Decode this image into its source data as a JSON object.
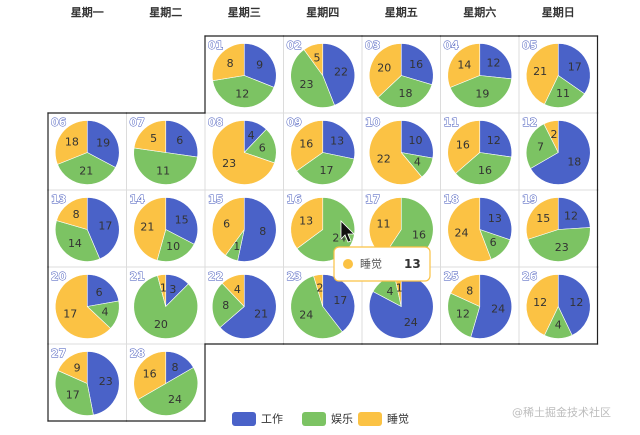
{
  "weekdays": [
    "星期一",
    "星期二",
    "星期三",
    "星期四",
    "星期五",
    "星期六",
    "星期日"
  ],
  "legend": [
    {
      "name": "工作",
      "color": "#4a62c8"
    },
    {
      "name": "娱乐",
      "color": "#7cc363"
    },
    {
      "name": "睡觉",
      "color": "#fbc244"
    }
  ],
  "tooltip": {
    "name": "睡觉",
    "value": "13"
  },
  "watermark": "@稀土掘金技术社区",
  "chart_data": {
    "type": "pie",
    "layout": "calendar",
    "series_names": [
      "工作",
      "娱乐",
      "睡觉"
    ],
    "days": [
      {
        "day": "01",
        "weekday": 3,
        "week": 0,
        "values": [
          9,
          12,
          8
        ]
      },
      {
        "day": "02",
        "weekday": 4,
        "week": 0,
        "values": [
          22,
          23,
          5
        ]
      },
      {
        "day": "03",
        "weekday": 5,
        "week": 0,
        "values": [
          16,
          18,
          20
        ]
      },
      {
        "day": "04",
        "weekday": 6,
        "week": 0,
        "values": [
          12,
          19,
          14
        ]
      },
      {
        "day": "05",
        "weekday": 7,
        "week": 0,
        "values": [
          17,
          11,
          21
        ]
      },
      {
        "day": "06",
        "weekday": 1,
        "week": 1,
        "values": [
          19,
          21,
          18
        ]
      },
      {
        "day": "07",
        "weekday": 2,
        "week": 1,
        "values": [
          6,
          11,
          5
        ]
      },
      {
        "day": "08",
        "weekday": 3,
        "week": 1,
        "values": [
          4,
          6,
          23
        ]
      },
      {
        "day": "09",
        "weekday": 4,
        "week": 1,
        "values": [
          13,
          17,
          16
        ]
      },
      {
        "day": "10",
        "weekday": 5,
        "week": 1,
        "values": [
          10,
          4,
          22
        ]
      },
      {
        "day": "11",
        "weekday": 6,
        "week": 1,
        "values": [
          12,
          16,
          16
        ]
      },
      {
        "day": "12",
        "weekday": 7,
        "week": 1,
        "values": [
          18,
          7,
          2
        ]
      },
      {
        "day": "13",
        "weekday": 1,
        "week": 2,
        "values": [
          17,
          14,
          8
        ]
      },
      {
        "day": "14",
        "weekday": 2,
        "week": 2,
        "values": [
          15,
          10,
          21
        ]
      },
      {
        "day": "15",
        "weekday": 3,
        "week": 2,
        "values": [
          8,
          1,
          6
        ]
      },
      {
        "day": "16",
        "weekday": 4,
        "week": 2,
        "values": [
          0,
          24,
          13
        ]
      },
      {
        "day": "17",
        "weekday": 5,
        "week": 2,
        "values": [
          0,
          16,
          11
        ]
      },
      {
        "day": "18",
        "weekday": 6,
        "week": 2,
        "values": [
          13,
          6,
          24
        ]
      },
      {
        "day": "19",
        "weekday": 7,
        "week": 2,
        "values": [
          12,
          23,
          15
        ]
      },
      {
        "day": "20",
        "weekday": 1,
        "week": 3,
        "values": [
          6,
          4,
          17
        ]
      },
      {
        "day": "21",
        "weekday": 2,
        "week": 3,
        "values": [
          3,
          20,
          1
        ]
      },
      {
        "day": "22",
        "weekday": 3,
        "week": 3,
        "values": [
          21,
          8,
          4
        ]
      },
      {
        "day": "23",
        "weekday": 4,
        "week": 3,
        "values": [
          17,
          24,
          2
        ]
      },
      {
        "day": "24",
        "weekday": 5,
        "week": 3,
        "values": [
          24,
          4,
          1
        ]
      },
      {
        "day": "25",
        "weekday": 6,
        "week": 3,
        "values": [
          24,
          12,
          8
        ]
      },
      {
        "day": "26",
        "weekday": 7,
        "week": 3,
        "values": [
          12,
          4,
          12
        ]
      },
      {
        "day": "27",
        "weekday": 1,
        "week": 4,
        "values": [
          23,
          17,
          9
        ]
      },
      {
        "day": "28",
        "weekday": 2,
        "week": 4,
        "values": [
          8,
          24,
          16
        ]
      }
    ]
  }
}
